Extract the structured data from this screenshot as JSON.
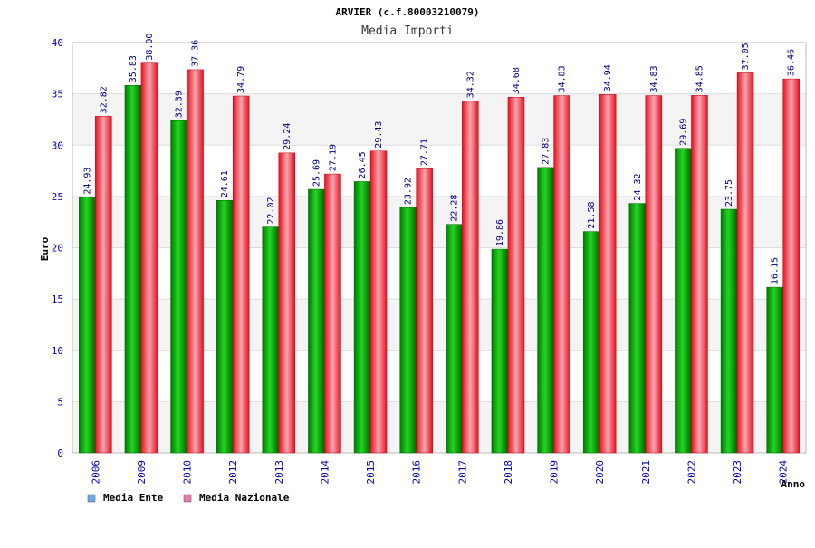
{
  "chart_data": {
    "type": "bar",
    "title": "ARVIER (c.f.80003210079)",
    "subtitle": "Media Importi",
    "xlabel": "Anno",
    "ylabel": "Euro",
    "ylim": [
      0,
      40
    ],
    "yticks": [
      0,
      5,
      10,
      15,
      20,
      25,
      30,
      35,
      40
    ],
    "grid": true,
    "legend_position": "bottom-left",
    "categories": [
      "2006",
      "2009",
      "2010",
      "2012",
      "2013",
      "2014",
      "2015",
      "2016",
      "2017",
      "2018",
      "2019",
      "2020",
      "2021",
      "2022",
      "2023",
      "2024"
    ],
    "series": [
      {
        "name": "Media Ente",
        "legend_color": "#6ea8e8",
        "bar_color": "#00b400",
        "values": [
          24.93,
          35.83,
          32.39,
          24.61,
          22.02,
          25.69,
          26.45,
          23.92,
          22.28,
          19.86,
          27.83,
          21.58,
          24.32,
          29.69,
          23.75,
          16.15
        ],
        "labels": [
          "24.93",
          "35.83",
          "32.39",
          "24.61",
          "22.02",
          "25.69",
          "26.45",
          "23.92",
          "22.28",
          "19.86",
          "27.83",
          "21.58",
          "24.32",
          "29.69",
          "23.75",
          "16.15"
        ]
      },
      {
        "name": "Media Nazionale",
        "legend_color": "#e878b0",
        "bar_color": "#e8101e",
        "values": [
          32.82,
          38.0,
          37.36,
          34.79,
          29.24,
          27.19,
          29.43,
          27.71,
          34.32,
          34.68,
          34.83,
          34.94,
          34.83,
          34.85,
          37.05,
          36.46
        ],
        "labels": [
          "32.82",
          "38.00",
          "37.36",
          "34.79",
          "29.24",
          "27.19",
          "29.43",
          "27.71",
          "34.32",
          "34.68",
          "34.83",
          "34.94",
          "34.83",
          "34.85",
          "37.05",
          "36.46"
        ]
      }
    ]
  }
}
